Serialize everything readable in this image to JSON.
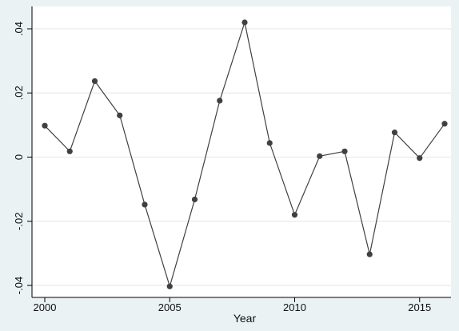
{
  "chart_data": {
    "type": "line",
    "xlabel": "Year",
    "ylabel": "",
    "xlim": [
      2000,
      2016
    ],
    "ylim": [
      -0.042,
      0.043
    ],
    "x_ticks": [
      {
        "value": 2000,
        "label": "2000"
      },
      {
        "value": 2005,
        "label": "2005"
      },
      {
        "value": 2010,
        "label": "2010"
      },
      {
        "value": 2015,
        "label": "2015"
      }
    ],
    "y_ticks": [
      {
        "value": -0.04,
        "label": "-.04"
      },
      {
        "value": -0.02,
        "label": "-.02"
      },
      {
        "value": 0,
        "label": "0"
      },
      {
        "value": 0.02,
        "label": ".02"
      },
      {
        "value": 0.04,
        "label": ".04"
      }
    ],
    "grid": true,
    "legend": "none",
    "series": [
      {
        "x": [
          2000,
          2001,
          2002,
          2003,
          2004,
          2005,
          2006,
          2007,
          2008,
          2009,
          2010,
          2011,
          2012,
          2013,
          2014,
          2015,
          2016
        ],
        "y": [
          0.0098,
          0.0018,
          0.0237,
          0.013,
          -0.0148,
          -0.0403,
          -0.0132,
          0.0176,
          0.042,
          0.0044,
          -0.018,
          0.0003,
          0.0018,
          -0.0303,
          0.0077,
          -0.0003,
          0.0104
        ],
        "color": "#404040"
      }
    ]
  }
}
